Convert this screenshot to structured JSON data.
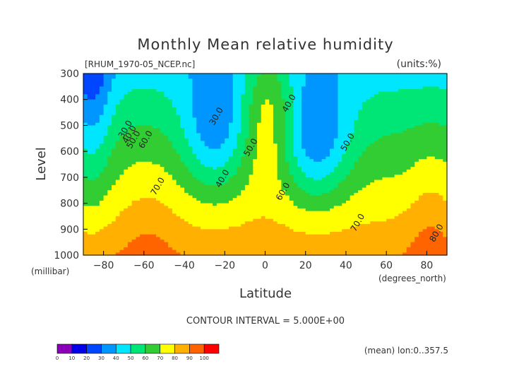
{
  "chart_data": {
    "type": "heatmap",
    "title": "Monthly Mean relative humidity",
    "source_file": "[RHUM_1970-05_NCEP.nc]",
    "units": "(units:%)",
    "xlabel": "Latitude",
    "x_unit": "(degrees_north)",
    "ylabel": "Level",
    "y_unit": "(millibar)",
    "xlim": [
      -90,
      90
    ],
    "ylim": [
      1000,
      300
    ],
    "x_ticks": [
      -80,
      -60,
      -40,
      -20,
      0,
      20,
      40,
      60,
      80
    ],
    "y_ticks": [
      300,
      400,
      500,
      600,
      700,
      800,
      900,
      1000
    ],
    "contour_interval_text": "CONTOUR INTERVAL = 5.000E+00",
    "footnote": "(mean) lon:0..357.5",
    "contour_labels": [
      {
        "text": "30.0",
        "x": -68,
        "y": 520
      },
      {
        "text": "40.0",
        "x": -66,
        "y": 540
      },
      {
        "text": "50.0",
        "x": -64,
        "y": 560
      },
      {
        "text": "60.0",
        "x": -58,
        "y": 560
      },
      {
        "text": "70.0",
        "x": -52,
        "y": 740
      },
      {
        "text": "30.0",
        "x": -23,
        "y": 470
      },
      {
        "text": "50.0",
        "x": -6,
        "y": 590
      },
      {
        "text": "40.0",
        "x": -20,
        "y": 710
      },
      {
        "text": "40.0",
        "x": 13,
        "y": 420
      },
      {
        "text": "60.0",
        "x": 10,
        "y": 760
      },
      {
        "text": "50.0",
        "x": 42,
        "y": 570
      },
      {
        "text": "70.0",
        "x": 47,
        "y": 880
      },
      {
        "text": "80.0",
        "x": 86,
        "y": 920
      }
    ],
    "legend": {
      "levels": [
        "0",
        "10",
        "20",
        "30",
        "40",
        "50",
        "60",
        "70",
        "80",
        "90",
        "100"
      ],
      "colors": [
        "#8a00b8",
        "#0000e8",
        "#0046ff",
        "#0096ff",
        "#00e6ff",
        "#00e676",
        "#32cd32",
        "#ffff00",
        "#ffb000",
        "#ff6400",
        "#ff0000"
      ]
    },
    "grid": false
  },
  "colors": {
    "violet": "#8a00b8",
    "blue_dark": "#0000e8",
    "blue": "#0046ff",
    "blue_mid": "#0096ff",
    "cyan": "#00e6ff",
    "green_light": "#00e676",
    "green": "#32cd32",
    "yellow": "#ffff00",
    "orange_light": "#ffb000",
    "orange": "#ff6400",
    "red": "#ff0000"
  }
}
